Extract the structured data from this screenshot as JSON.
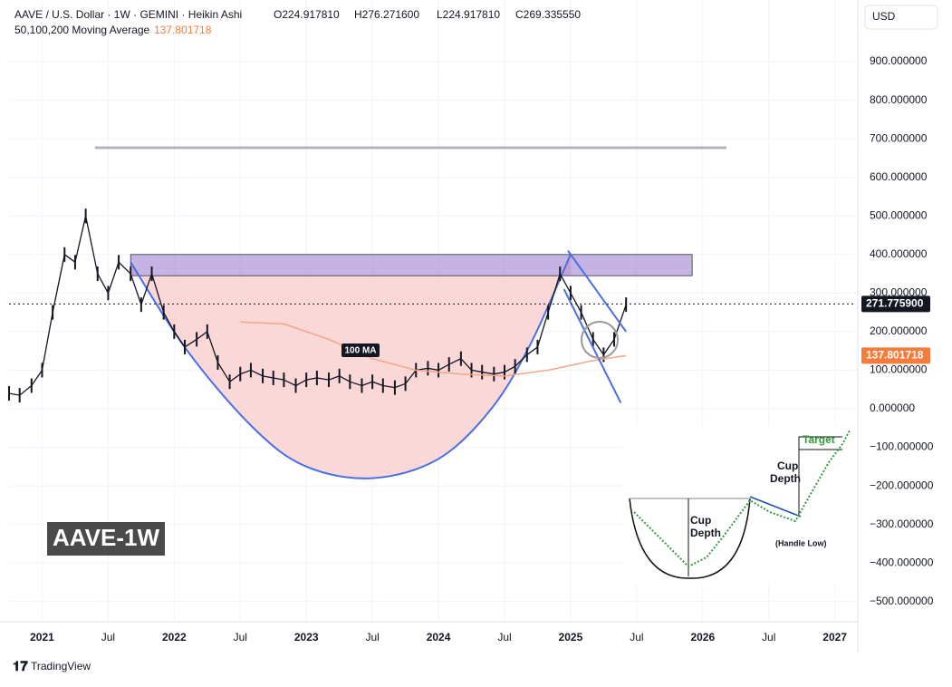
{
  "chart_data": {
    "type": "line",
    "symbol": "AAVE / U.S. Dollar · 1W · GEMINI · Heikin Ashi",
    "ohlc": [
      "O224.917810",
      "H276.271600",
      "L224.917810",
      "C269.335550"
    ],
    "indicator": "50,100,200 Moving Average",
    "indicator_value": "137.801718",
    "currency": "USD",
    "watermark": "AAVE-1W",
    "ma_label": "100 MA",
    "last_price": {
      "value": 271.7759,
      "label": "271.775900"
    },
    "ma_last": {
      "value": 137.801718,
      "label": "137.801718"
    },
    "brand": "TradingView",
    "xlim": [
      2020.75,
      2027.16
    ],
    "ylim": [
      -550,
      1060
    ],
    "xticks": [
      2021,
      {
        "value": 2021.5,
        "label": "Jul"
      },
      2022,
      {
        "value": 2022.5,
        "label": "Jul"
      },
      2023,
      {
        "value": 2023.5,
        "label": "Jul"
      },
      2024,
      {
        "value": 2024.5,
        "label": "Jul"
      },
      2025,
      {
        "value": 2025.5,
        "label": "Jul"
      },
      2026,
      {
        "value": 2026.5,
        "label": "Jul"
      },
      2027
    ],
    "yticks": [
      {
        "value": -500,
        "label": "−500.000000"
      },
      {
        "value": -400,
        "label": "−400.000000"
      },
      {
        "value": -300,
        "label": "−300.000000"
      },
      {
        "value": -200,
        "label": "−200.000000"
      },
      {
        "value": -100,
        "label": "−100.000000"
      },
      {
        "value": 0,
        "label": "0.000000"
      },
      {
        "value": 100,
        "label": "100.000000"
      },
      {
        "value": 200,
        "label": "200.000000"
      },
      {
        "value": 300,
        "label": "300.000000"
      },
      {
        "value": 400,
        "label": "400.000000"
      },
      {
        "value": 500,
        "label": "500.000000"
      },
      {
        "value": 600,
        "label": "600.000000"
      },
      {
        "value": 700,
        "label": "700.000000"
      },
      {
        "value": 800,
        "label": "800.000000"
      },
      {
        "value": 900,
        "label": "900.000000"
      }
    ],
    "grid": true,
    "series": [
      {
        "color": "#131722",
        "x": [
          2020.75,
          2020.83,
          2020.92,
          2021.0,
          2021.08,
          2021.17,
          2021.25,
          2021.33,
          2021.42,
          2021.5,
          2021.58,
          2021.67,
          2021.75,
          2021.83,
          2021.92,
          2022.0,
          2022.08,
          2022.17,
          2022.25,
          2022.33,
          2022.42,
          2022.5,
          2022.58,
          2022.67,
          2022.75,
          2022.83,
          2022.92,
          2023.0,
          2023.08,
          2023.17,
          2023.25,
          2023.33,
          2023.42,
          2023.5,
          2023.58,
          2023.67,
          2023.75,
          2023.83,
          2023.92,
          2024.0,
          2024.08,
          2024.17,
          2024.25,
          2024.33,
          2024.42,
          2024.5,
          2024.58,
          2024.67,
          2024.75,
          2024.83,
          2024.92,
          2025.0,
          2025.08,
          2025.17,
          2025.25,
          2025.33,
          2025.42
        ],
        "values": [
          40,
          35,
          60,
          100,
          250,
          400,
          380,
          500,
          350,
          300,
          380,
          350,
          270,
          350,
          250,
          200,
          160,
          180,
          200,
          120,
          70,
          90,
          100,
          85,
          80,
          75,
          60,
          75,
          80,
          75,
          85,
          70,
          60,
          70,
          60,
          55,
          65,
          100,
          105,
          100,
          115,
          130,
          100,
          95,
          90,
          95,
          110,
          140,
          160,
          250,
          350,
          300,
          250,
          180,
          140,
          180,
          270
        ]
      },
      {
        "color": "#f4a582",
        "x": [
          2022.5,
          2022.83,
          2023.17,
          2023.5,
          2023.83,
          2024.17,
          2024.5,
          2024.83,
          2025.17,
          2025.42
        ],
        "values": [
          225,
          220,
          180,
          130,
          100,
          90,
          85,
          100,
          125,
          137.8
        ]
      }
    ],
    "resistance": {
      "color": "#b2b5be",
      "x": [
        2021.4,
        2026.18
      ],
      "value": 677
    },
    "zone": {
      "color": "#9575cd",
      "x": [
        2021.67,
        2025.92
      ],
      "range": [
        345,
        400
      ]
    },
    "cup": {
      "color": "#4a6fe3",
      "fill": "#f9c8c8",
      "x": [
        2021.67,
        2022.1,
        2022.6,
        2023.0,
        2023.5,
        2024.0,
        2024.4,
        2024.7,
        2025.0
      ],
      "values": [
        380,
        150,
        -50,
        -150,
        -180,
        -130,
        0,
        170,
        400
      ]
    },
    "wedge": {
      "color": "#4a6fe3",
      "upper": {
        "x": [
          2024.98,
          2025.42
        ],
        "values": [
          410,
          200
        ]
      },
      "lower": {
        "x": [
          2024.95,
          2025.38
        ],
        "values": [
          310,
          15
        ]
      }
    },
    "inset": {
      "labels": [
        "Cup",
        "Depth",
        "Cup",
        "Depth",
        "Target",
        "(Handle Low)"
      ]
    }
  }
}
